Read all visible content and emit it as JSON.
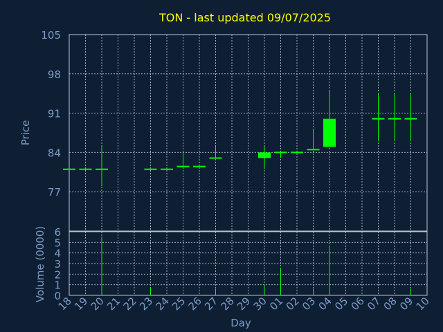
{
  "title": "TON - last updated 09/07/2025",
  "colors": {
    "background": "#0f1f33",
    "text": "#7a9cc6",
    "title": "#ffff00",
    "candle": "#00ff00",
    "grid": "#b9c6d6"
  },
  "chart_data": [
    {
      "type": "candlestick",
      "ylabel": "Price",
      "yticks": [
        77,
        84,
        91,
        98,
        105
      ],
      "ylim": [
        70,
        105
      ],
      "grid": true,
      "x": [
        "18",
        "19",
        "20",
        "21",
        "22",
        "23",
        "24",
        "25",
        "26",
        "27",
        "28",
        "29",
        "30",
        "01",
        "02",
        "03",
        "04",
        "05",
        "06",
        "07",
        "08",
        "09",
        "10"
      ],
      "candles": [
        {
          "day": "18",
          "open": 81.0,
          "high": 81.0,
          "low": 81.0,
          "close": 81.0
        },
        {
          "day": "19",
          "open": 81.0,
          "high": 81.0,
          "low": 81.0,
          "close": 81.0
        },
        {
          "day": "20",
          "open": 81.0,
          "high": 85.0,
          "low": 78.0,
          "close": 81.0
        },
        {
          "day": "23",
          "open": 81.0,
          "high": 81.0,
          "low": 81.0,
          "close": 81.0
        },
        {
          "day": "24",
          "open": 81.0,
          "high": 81.0,
          "low": 81.0,
          "close": 81.0
        },
        {
          "day": "25",
          "open": 81.5,
          "high": 84.0,
          "low": 81.0,
          "close": 81.5
        },
        {
          "day": "26",
          "open": 81.5,
          "high": 81.5,
          "low": 81.5,
          "close": 81.5
        },
        {
          "day": "27",
          "open": 83.0,
          "high": 85.0,
          "low": 83.0,
          "close": 83.0
        },
        {
          "day": "30",
          "open": 84.0,
          "high": 85.0,
          "low": 81.0,
          "close": 83.0
        },
        {
          "day": "01",
          "open": 84.0,
          "high": 84.0,
          "low": 83.0,
          "close": 84.0
        },
        {
          "day": "02",
          "open": 84.0,
          "high": 84.0,
          "low": 84.0,
          "close": 84.0
        },
        {
          "day": "03",
          "open": 84.5,
          "high": 88.0,
          "low": 84.5,
          "close": 84.5
        },
        {
          "day": "04",
          "open": 85.0,
          "high": 95.0,
          "low": 85.0,
          "close": 90.0
        },
        {
          "day": "07",
          "open": 90.0,
          "high": 94.5,
          "low": 86.0,
          "close": 90.0
        },
        {
          "day": "08",
          "open": 90.0,
          "high": 94.5,
          "low": 86.0,
          "close": 90.0
        },
        {
          "day": "09",
          "open": 90.0,
          "high": 94.5,
          "low": 86.0,
          "close": 90.0
        }
      ]
    },
    {
      "type": "bar",
      "xlabel": "Day",
      "ylabel": "Volume (0000)",
      "yticks": [
        0,
        1,
        2,
        3,
        4,
        5,
        6
      ],
      "ylim": [
        0,
        6
      ],
      "grid": true,
      "x": [
        "18",
        "19",
        "20",
        "21",
        "22",
        "23",
        "24",
        "25",
        "26",
        "27",
        "28",
        "29",
        "30",
        "01",
        "02",
        "03",
        "04",
        "05",
        "06",
        "07",
        "08",
        "09",
        "10"
      ],
      "values": [
        {
          "day": "18",
          "value": 0
        },
        {
          "day": "19",
          "value": 0
        },
        {
          "day": "20",
          "value": 5.5
        },
        {
          "day": "23",
          "value": 0.7
        },
        {
          "day": "24",
          "value": 0
        },
        {
          "day": "25",
          "value": 0
        },
        {
          "day": "26",
          "value": 0
        },
        {
          "day": "27",
          "value": 0.6
        },
        {
          "day": "30",
          "value": 1.0
        },
        {
          "day": "01",
          "value": 2.6
        },
        {
          "day": "02",
          "value": 0
        },
        {
          "day": "03",
          "value": 0.6
        },
        {
          "day": "04",
          "value": 4.7
        },
        {
          "day": "07",
          "value": 0
        },
        {
          "day": "08",
          "value": 0
        },
        {
          "day": "09",
          "value": 0.6
        }
      ]
    }
  ]
}
